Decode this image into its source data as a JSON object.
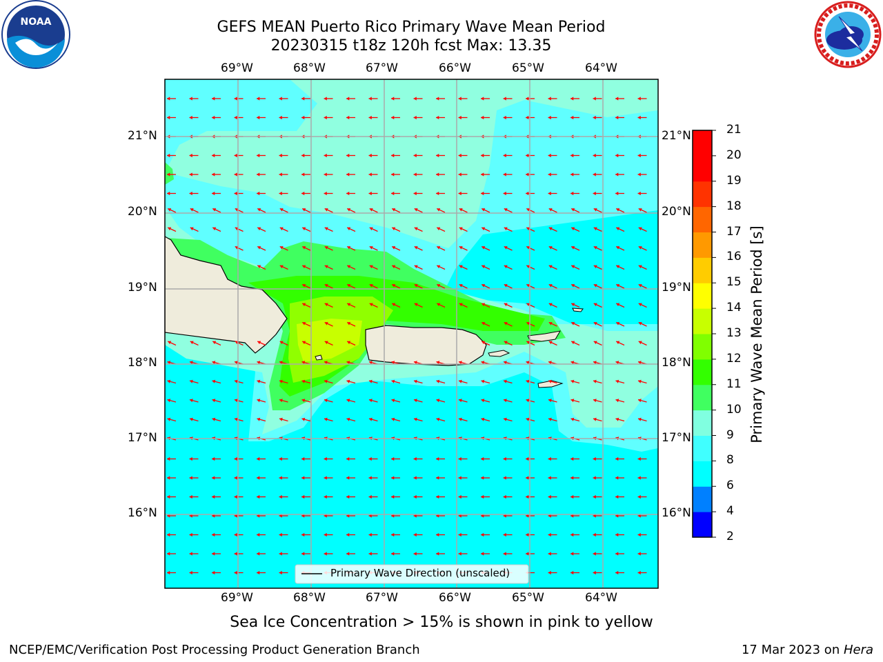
{
  "header": {
    "title_line1": "GEFS MEAN Puerto Rico Primary Wave Mean Period",
    "title_line2": "20230315 t18z 120h fcst   Max: 13.35"
  },
  "logos": {
    "left": "noaa-logo",
    "right": "nws-logo"
  },
  "map": {
    "lon_labels": [
      "69°W",
      "68°W",
      "67°W",
      "66°W",
      "65°W",
      "64°W"
    ],
    "lat_labels": [
      "21°N",
      "20°N",
      "19°N",
      "18°N",
      "17°N",
      "16°N"
    ],
    "legend_label": "Primary Wave Direction (unscaled)",
    "land_color": "#efecdc",
    "arrow_color": "#ff0000"
  },
  "colorbar": {
    "title": "Primary Wave Mean Period [s]",
    "ticks": [
      "2",
      "4",
      "6",
      "8",
      "9",
      "10",
      "11",
      "12",
      "13",
      "14",
      "15",
      "16",
      "17",
      "18",
      "19",
      "20",
      "21"
    ],
    "colors": [
      "#0000ff",
      "#0080ff",
      "#00ffff",
      "#40ffff",
      "#80ffe0",
      "#40ff60",
      "#33ff00",
      "#80ff00",
      "#c8ff00",
      "#ffff00",
      "#ffcc00",
      "#ff9900",
      "#ff6600",
      "#ff3300",
      "#ff0000"
    ]
  },
  "notes": {
    "sea_ice": "Sea Ice Concentration > 15% is shown in pink to yellow"
  },
  "footer": {
    "left": "NCEP/EMC/Verification Post Processing Product Generation Branch",
    "right_date": "17 Mar 2023 on ",
    "right_machine": "Hera"
  }
}
